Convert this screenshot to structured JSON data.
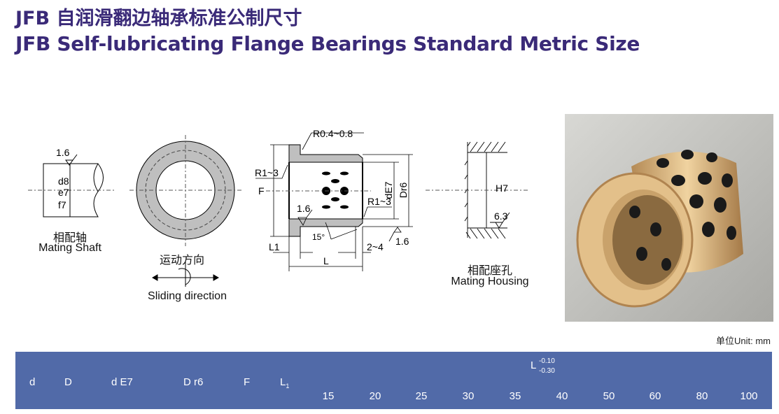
{
  "title_cn": "JFB 自润滑翻边轴承标准公制尺寸",
  "title_en": "JFB Self-lubricating Flange Bearings Standard Metric Size",
  "shaft": {
    "roughness": "1.6",
    "fits": [
      "d8",
      "e7",
      "f7"
    ],
    "label_cn": "相配轴",
    "label_en": "Mating Shaft"
  },
  "sliding": {
    "label_cn": "运动方向",
    "label_en": "Sliding direction"
  },
  "bearing": {
    "r_top": "R0.4~0.8",
    "r_left": "R1~3",
    "r_right": "R1~3",
    "f": "F",
    "rough_in": "1.6",
    "rough_out": "1.6",
    "angle": "15°",
    "de7": "dE7",
    "dr6": "Dr6",
    "l1": "L1",
    "l": "L",
    "chamfer": "2~4"
  },
  "housing": {
    "fit": "H7",
    "roughness": "6.3",
    "label_cn": "相配座孔",
    "label_en": "Mating Housing"
  },
  "unit": "单位Unit: mm",
  "table": {
    "headers": [
      "d",
      "D",
      "d E7",
      "D r6",
      "F",
      "L"
    ],
    "l1_sub": "1",
    "l_header": "L",
    "l_tol_upper": "-0.10",
    "l_tol_lower": "-0.30",
    "l_values": [
      "15",
      "20",
      "25",
      "30",
      "35",
      "40",
      "50",
      "60",
      "80",
      "100"
    ]
  },
  "colors": {
    "title": "#3a2a78",
    "band": "#516aa8",
    "bronze": "#d9b27a"
  }
}
